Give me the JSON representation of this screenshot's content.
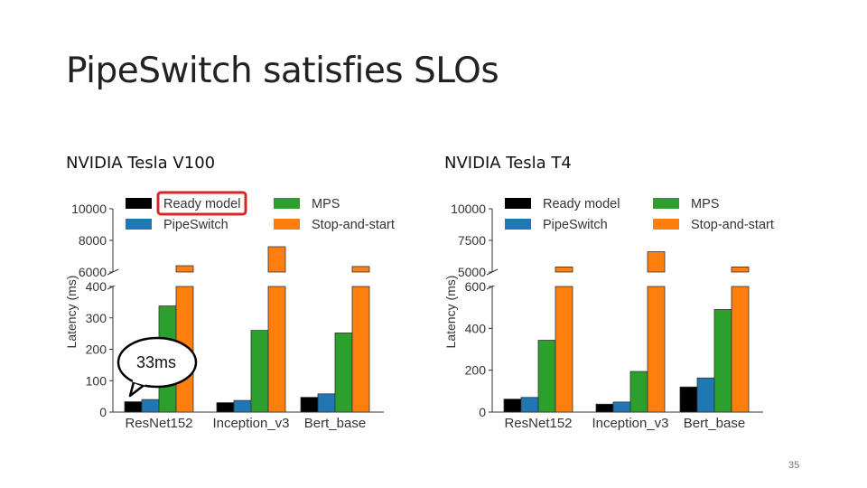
{
  "slide": {
    "title": "PipeSwitch satisfies SLOs",
    "page_number": "35",
    "callout": "33ms"
  },
  "colors": {
    "Ready model": "#000000",
    "PipeSwitch": "#1f77b4",
    "MPS": "#2ca02c",
    "Stop-and-start": "#ff7f0e",
    "highlight": "#d62728"
  },
  "chart_data": [
    {
      "type": "bar",
      "title": "NVIDIA Tesla V100",
      "ylabel": "Latency (ms)",
      "categories": [
        "ResNet152",
        "Inception_v3",
        "Bert_base"
      ],
      "series": [
        {
          "name": "Ready model",
          "values": [
            33,
            30,
            47
          ]
        },
        {
          "name": "PipeSwitch",
          "values": [
            40,
            37,
            58
          ]
        },
        {
          "name": "MPS",
          "values": [
            338,
            260,
            252
          ]
        },
        {
          "name": "Stop-and-start",
          "values": [
            6400,
            7600,
            6350
          ]
        }
      ],
      "lower_ylim": [
        0,
        400
      ],
      "lower_yticks": [
        "0",
        "100",
        "200",
        "300",
        "400"
      ],
      "lower_ytick_values": [
        0,
        100,
        200,
        300,
        400
      ],
      "upper_ylim": [
        6000,
        10000
      ],
      "upper_yticks": [
        "6000",
        "8000",
        "10000"
      ],
      "upper_ytick_values": [
        6000,
        8000,
        10000
      ],
      "broken_axis": true,
      "legend_location": "top",
      "highlighted_legend_entry": "Ready model"
    },
    {
      "type": "bar",
      "title": "NVIDIA Tesla T4",
      "ylabel": "Latency (ms)",
      "categories": [
        "ResNet152",
        "Inception_v3",
        "Bert_base"
      ],
      "series": [
        {
          "name": "Ready model",
          "values": [
            62,
            38,
            120
          ]
        },
        {
          "name": "PipeSwitch",
          "values": [
            70,
            48,
            163
          ]
        },
        {
          "name": "MPS",
          "values": [
            343,
            194,
            490
          ]
        },
        {
          "name": "Stop-and-start",
          "values": [
            5400,
            6600,
            5400
          ]
        }
      ],
      "lower_ylim": [
        0,
        600
      ],
      "lower_yticks": [
        "0",
        "200",
        "400",
        "600"
      ],
      "lower_ytick_values": [
        0,
        200,
        400,
        600
      ],
      "upper_ylim": [
        5000,
        10000
      ],
      "upper_yticks": [
        "5000",
        "7500",
        "10000"
      ],
      "upper_ytick_values": [
        5000,
        7500,
        10000
      ],
      "broken_axis": true,
      "legend_location": "top"
    }
  ]
}
